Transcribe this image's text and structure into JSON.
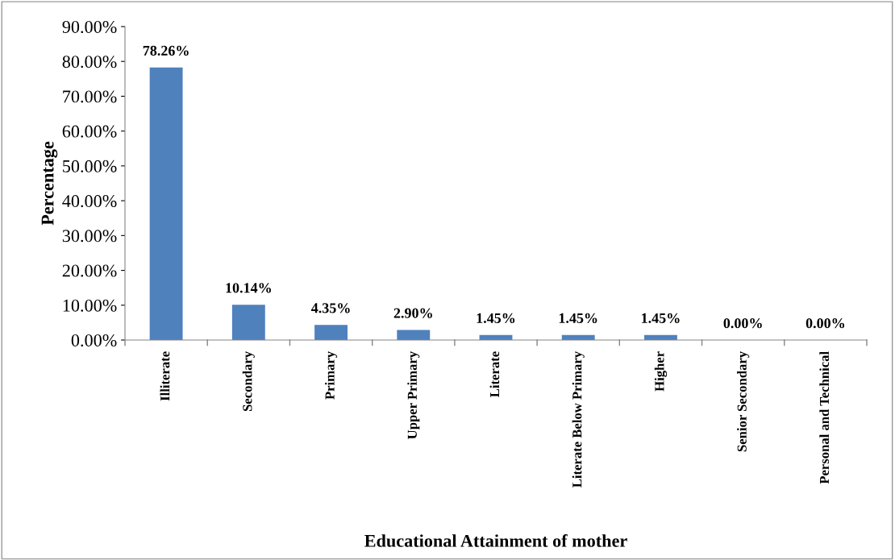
{
  "chart_data": {
    "type": "bar",
    "xlabel": "Educational Attainment of mother",
    "ylabel": "Percentage",
    "categories": [
      "Illiterate",
      "Secondary",
      "Primary",
      "Upper Primary",
      "Literate",
      "Literate Below Primary",
      "Higher",
      "Senior Secondary",
      "Personal and Technical"
    ],
    "values": [
      78.26,
      10.14,
      4.35,
      2.9,
      1.45,
      1.45,
      1.45,
      0.0,
      0.0
    ],
    "value_labels": [
      "78.26%",
      "10.14%",
      "4.35%",
      "2.90%",
      "1.45%",
      "1.45%",
      "1.45%",
      "0.00%",
      "0.00%"
    ],
    "color": "#4f81bd",
    "ylim": [
      0,
      90
    ],
    "yticks": [
      {
        "value": 0,
        "label": "0.00%"
      },
      {
        "value": 10,
        "label": "10.00%"
      },
      {
        "value": 20,
        "label": "20.00%"
      },
      {
        "value": 30,
        "label": "30.00%"
      },
      {
        "value": 40,
        "label": "40.00%"
      },
      {
        "value": 50,
        "label": "50.00%"
      },
      {
        "value": 60,
        "label": "60.00%"
      },
      {
        "value": 70,
        "label": "70.00%"
      },
      {
        "value": 80,
        "label": "80.00%"
      },
      {
        "value": 90,
        "label": "90.00%"
      }
    ],
    "grid": false,
    "legend": false
  }
}
